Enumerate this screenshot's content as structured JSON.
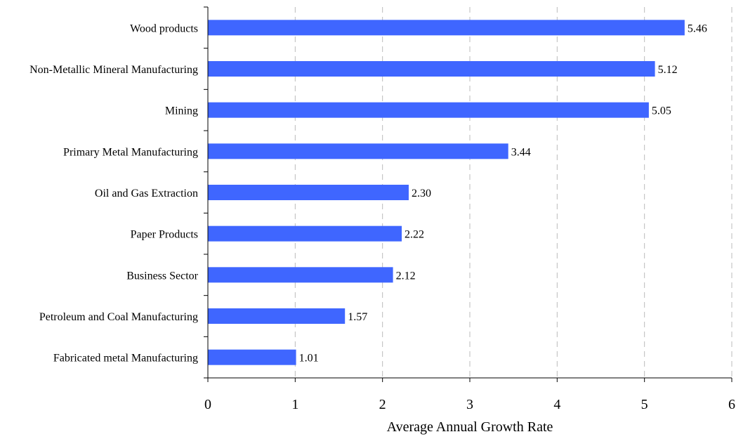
{
  "chart_data": {
    "type": "bar",
    "orientation": "horizontal",
    "title": "",
    "xlabel": "Average Annual Growth Rate",
    "ylabel": "",
    "categories": [
      "Wood products",
      "Non-Metallic Mineral Manufacturing",
      "Mining",
      "Primary Metal  Manufacturing",
      "Oil and Gas Extraction",
      "Paper Products",
      "Business Sector",
      "Petroleum and Coal Manufacturing",
      "Fabricated metal Manufacturing"
    ],
    "values": [
      5.46,
      5.12,
      5.05,
      3.44,
      2.3,
      2.22,
      2.12,
      1.57,
      1.01
    ],
    "value_labels": [
      "5.46",
      "5.12",
      "5.05",
      "3.44",
      "2.30",
      "2.22",
      "2.12",
      "1.57",
      "1.01"
    ],
    "xlim": [
      0,
      6
    ],
    "x_ticks": [
      "0",
      "1",
      "2",
      "3",
      "4",
      "5",
      "6"
    ],
    "grid": "vertical dashed",
    "legend": "none",
    "bar_color": "#3F66FF",
    "grid_color": "#BBBBBB"
  }
}
